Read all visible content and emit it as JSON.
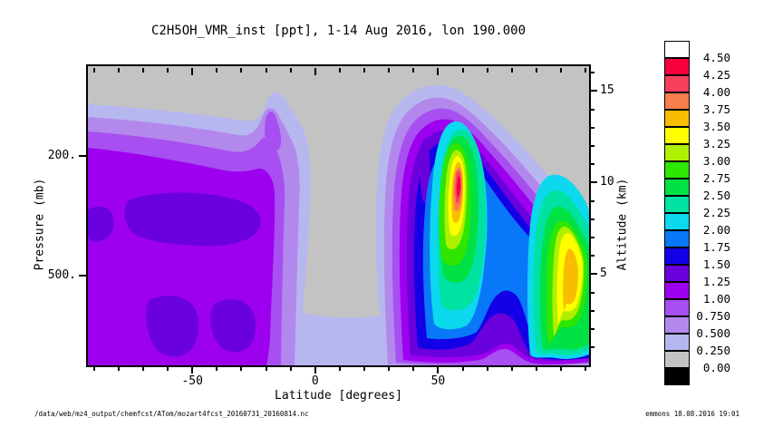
{
  "title": "C2H5OH_VMR_inst [ppt], 1-14 Aug 2016, lon 190.000",
  "footer": {
    "file_path": "/data/web/mz4_output/chemfcst/ATom/mozart4fcst_20160731_20160814.nc",
    "signature": "emmons 18.08.2016 19:01"
  },
  "chart_data": {
    "type": "contour",
    "title": "C2H5OH_VMR_inst [ppt], 1-14 Aug 2016, lon 190.000",
    "variable": "C2H5OH_VMR_inst",
    "units": "ppt",
    "date_range": "1-14 Aug 2016",
    "longitude": "190.000",
    "xlabel": "Latitude [degrees]",
    "ylabel_left": "Pressure (mb)",
    "ylabel_right": "Altitude (km)",
    "x_major_ticks": [
      -50,
      0,
      50
    ],
    "x_minor_step_deg": 10,
    "pressure_ticks_mb": [
      "200.",
      "500."
    ],
    "pressure_scale": "log",
    "pressure_range_mb": [
      100,
      1000
    ],
    "altitude_major_ticks_km": [
      5,
      10,
      15
    ],
    "altitude_minor_step_km": 1,
    "altitude_range_km": [
      0,
      16.3
    ],
    "legend_position": "right",
    "levels_ppt": [
      0.0,
      0.25,
      0.5,
      0.75,
      1.0,
      1.25,
      1.5,
      1.75,
      2.0,
      2.25,
      2.5,
      2.75,
      3.0,
      3.25,
      3.5,
      3.75,
      4.0,
      4.25,
      4.5
    ],
    "colorbar_labels": [
      "4.50",
      "4.25",
      "4.00",
      "3.75",
      "3.50",
      "3.25",
      "3.00",
      "2.75",
      "2.50",
      "2.25",
      "2.00",
      "1.75",
      "1.50",
      "1.25",
      "1.00",
      "0.750",
      "0.500",
      "0.250",
      "0.00"
    ],
    "palette": [
      "#C3C3C3",
      "#B7B7F0",
      "#B388EC",
      "#A74FF0",
      "#9D00EE",
      "#6A00DC",
      "#1400E6",
      "#0878F8",
      "#0CD8EE",
      "#00E2A2",
      "#00E144",
      "#2EE600",
      "#AFF000",
      "#FFFF00",
      "#F8BC00",
      "#F87E4C",
      "#F83E5C",
      "#F8003E"
    ],
    "under_color": "#000000",
    "over_color": "#FFFFFF",
    "background_fill": "#C3C3C3",
    "grid": {
      "note": "values (ppt) estimated from contour band colors",
      "lat_deg": [
        -90,
        -75,
        -60,
        -45,
        -30,
        -15,
        0,
        15,
        30,
        45,
        60,
        75,
        90
      ],
      "alt_km": [
        1,
        3,
        5,
        7,
        9,
        11,
        13,
        15
      ],
      "values_ppt": [
        [
          1.1,
          1.1,
          1.1,
          1.1,
          0.9,
          0.6,
          0.4,
          0.1
        ],
        [
          1.1,
          1.1,
          1.1,
          1.4,
          0.9,
          0.6,
          0.4,
          0.1
        ],
        [
          1.1,
          1.4,
          1.1,
          1.4,
          1.0,
          0.6,
          0.3,
          0.1
        ],
        [
          1.1,
          1.4,
          1.1,
          1.4,
          0.9,
          0.6,
          0.3,
          0.1
        ],
        [
          1.0,
          1.4,
          1.1,
          1.3,
          0.8,
          0.5,
          0.3,
          0.1
        ],
        [
          0.6,
          0.9,
          0.9,
          0.6,
          0.4,
          0.4,
          0.4,
          0.1
        ],
        [
          0.3,
          0.1,
          0.1,
          0.1,
          0.1,
          0.1,
          0.1,
          0.1
        ],
        [
          0.4,
          0.3,
          0.1,
          0.1,
          0.1,
          0.1,
          0.1,
          0.1
        ],
        [
          0.6,
          1.1,
          1.4,
          1.6,
          2.1,
          1.9,
          1.1,
          0.4
        ],
        [
          0.9,
          1.9,
          2.4,
          2.9,
          3.4,
          3.1,
          1.9,
          0.4
        ],
        [
          1.1,
          1.9,
          2.1,
          1.9,
          1.6,
          1.4,
          0.9,
          0.3
        ],
        [
          1.1,
          2.4,
          2.9,
          2.4,
          1.6,
          0.9,
          0.4,
          0.1
        ],
        [
          1.1,
          2.6,
          3.1,
          2.6,
          1.4,
          0.6,
          0.3,
          0.1
        ]
      ]
    },
    "maxima": [
      {
        "lat_deg": 50,
        "alt_km": 9.5,
        "value_ppt": 4.3
      },
      {
        "lat_deg": 80,
        "alt_km": 4.5,
        "value_ppt": 3.6
      }
    ]
  }
}
